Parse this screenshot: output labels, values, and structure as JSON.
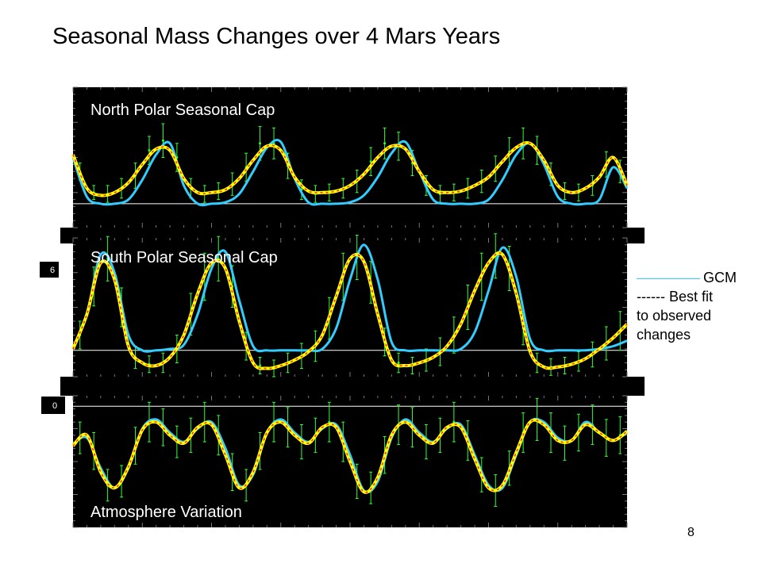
{
  "title": "Seasonal Mass Changes over 4 Mars Years",
  "slide_number": "8",
  "legend": {
    "gcm_label": "GCM",
    "fit_label_line1": "------ Best fit",
    "fit_label_line2": "to observed",
    "fit_label_line3": "changes"
  },
  "colors": {
    "panel_bg": "#000000",
    "gcm": "#33ccff",
    "best_fit": "#ffff00",
    "best_fit_dash": "#ff2200",
    "observations": "#33ff33",
    "axis_text": "#ffffff"
  },
  "chart_data": [
    {
      "type": "line",
      "title": "North Polar Seasonal Cap",
      "xlabel": "",
      "ylabel": "",
      "x_range": [
        0,
        4
      ],
      "y_range": [
        0,
        1
      ],
      "baseline": 0.17,
      "grid": false,
      "series": [
        {
          "role": "gcm",
          "x": [
            0,
            0.1,
            0.2,
            0.3,
            0.4,
            0.5,
            0.6,
            0.7,
            0.8,
            0.9,
            1.0,
            1.1,
            1.2,
            1.3,
            1.4,
            1.5,
            1.6,
            1.7,
            1.8,
            1.9,
            2.0,
            2.1,
            2.2,
            2.3,
            2.4,
            2.5,
            2.6,
            2.7,
            2.8,
            2.9,
            3.0,
            3.1,
            3.2,
            3.3,
            3.4,
            3.5,
            3.6,
            3.7,
            3.8,
            3.9,
            4.0
          ],
          "y": [
            0.5,
            0.22,
            0.17,
            0.17,
            0.2,
            0.34,
            0.52,
            0.6,
            0.3,
            0.17,
            0.17,
            0.18,
            0.24,
            0.4,
            0.57,
            0.61,
            0.35,
            0.18,
            0.17,
            0.17,
            0.18,
            0.23,
            0.36,
            0.53,
            0.61,
            0.4,
            0.2,
            0.17,
            0.17,
            0.17,
            0.2,
            0.34,
            0.52,
            0.6,
            0.45,
            0.22,
            0.17,
            0.17,
            0.2,
            0.43,
            0.28
          ]
        },
        {
          "role": "best_fit",
          "x": [
            0,
            0.1,
            0.2,
            0.3,
            0.4,
            0.5,
            0.6,
            0.7,
            0.8,
            0.9,
            1.0,
            1.1,
            1.2,
            1.3,
            1.4,
            1.5,
            1.6,
            1.7,
            1.8,
            1.9,
            2.0,
            2.1,
            2.2,
            2.3,
            2.4,
            2.5,
            2.6,
            2.7,
            2.8,
            2.9,
            3.0,
            3.1,
            3.2,
            3.3,
            3.4,
            3.5,
            3.6,
            3.7,
            3.8,
            3.9,
            4.0
          ],
          "y": [
            0.52,
            0.28,
            0.23,
            0.25,
            0.32,
            0.45,
            0.56,
            0.55,
            0.35,
            0.25,
            0.25,
            0.27,
            0.35,
            0.48,
            0.58,
            0.55,
            0.36,
            0.26,
            0.25,
            0.26,
            0.3,
            0.38,
            0.5,
            0.58,
            0.56,
            0.4,
            0.27,
            0.25,
            0.26,
            0.3,
            0.36,
            0.47,
            0.57,
            0.6,
            0.48,
            0.3,
            0.25,
            0.28,
            0.36,
            0.5,
            0.3
          ]
        },
        {
          "role": "observations",
          "x": [
            0.05,
            0.15,
            0.25,
            0.35,
            0.45,
            0.55,
            0.65,
            0.75,
            0.85,
            0.95,
            1.05,
            1.15,
            1.25,
            1.35,
            1.45,
            1.55,
            1.65,
            1.75,
            1.85,
            1.95,
            2.05,
            2.15,
            2.25,
            2.35,
            2.45,
            2.55,
            2.65,
            2.75,
            2.85,
            2.95,
            3.05,
            3.15,
            3.25,
            3.35,
            3.45,
            3.55,
            3.65,
            3.75,
            3.85,
            3.95
          ],
          "y": [
            0.4,
            0.25,
            0.24,
            0.28,
            0.37,
            0.55,
            0.62,
            0.5,
            0.28,
            0.24,
            0.26,
            0.31,
            0.43,
            0.6,
            0.6,
            0.44,
            0.27,
            0.24,
            0.25,
            0.28,
            0.33,
            0.47,
            0.6,
            0.58,
            0.46,
            0.3,
            0.24,
            0.25,
            0.28,
            0.33,
            0.42,
            0.54,
            0.6,
            0.55,
            0.38,
            0.26,
            0.25,
            0.3,
            0.45,
            0.4
          ],
          "err": [
            0.06,
            0.05,
            0.06,
            0.07,
            0.09,
            0.1,
            0.12,
            0.1,
            0.07,
            0.06,
            0.06,
            0.08,
            0.1,
            0.12,
            0.11,
            0.09,
            0.07,
            0.06,
            0.06,
            0.07,
            0.08,
            0.1,
            0.11,
            0.1,
            0.09,
            0.07,
            0.06,
            0.06,
            0.07,
            0.08,
            0.09,
            0.1,
            0.11,
            0.1,
            0.08,
            0.06,
            0.06,
            0.07,
            0.09,
            0.08
          ]
        }
      ]
    },
    {
      "type": "line",
      "title": "South Polar Seasonal Cap",
      "xlabel": "",
      "ylabel": "",
      "x_range": [
        0,
        4
      ],
      "y_range": [
        0,
        1
      ],
      "baseline": 0.19,
      "grid": false,
      "series": [
        {
          "role": "gcm",
          "x": [
            0,
            0.1,
            0.2,
            0.3,
            0.4,
            0.5,
            0.6,
            0.7,
            0.8,
            0.9,
            1.0,
            1.1,
            1.2,
            1.3,
            1.4,
            1.5,
            1.6,
            1.7,
            1.8,
            1.9,
            2.0,
            2.1,
            2.2,
            2.3,
            2.4,
            2.5,
            2.6,
            2.7,
            2.8,
            2.9,
            3.0,
            3.1,
            3.2,
            3.3,
            3.4,
            3.5,
            3.6,
            3.7,
            3.8,
            3.9,
            4.0
          ],
          "y": [
            0.2,
            0.45,
            0.88,
            0.75,
            0.3,
            0.19,
            0.19,
            0.2,
            0.23,
            0.45,
            0.78,
            0.9,
            0.55,
            0.22,
            0.19,
            0.19,
            0.19,
            0.19,
            0.2,
            0.35,
            0.7,
            0.95,
            0.7,
            0.25,
            0.19,
            0.19,
            0.19,
            0.19,
            0.2,
            0.32,
            0.62,
            0.93,
            0.72,
            0.27,
            0.19,
            0.19,
            0.19,
            0.19,
            0.2,
            0.22,
            0.26
          ]
        },
        {
          "role": "best_fit",
          "x": [
            0,
            0.1,
            0.2,
            0.3,
            0.4,
            0.5,
            0.6,
            0.7,
            0.8,
            0.9,
            1.0,
            1.1,
            1.2,
            1.3,
            1.4,
            1.5,
            1.6,
            1.7,
            1.8,
            1.9,
            2.0,
            2.1,
            2.2,
            2.3,
            2.4,
            2.5,
            2.6,
            2.7,
            2.8,
            2.9,
            3.0,
            3.1,
            3.2,
            3.3,
            3.4,
            3.5,
            3.6,
            3.7,
            3.8,
            3.9,
            4.0
          ],
          "y": [
            0.2,
            0.45,
            0.82,
            0.7,
            0.22,
            0.1,
            0.08,
            0.14,
            0.3,
            0.6,
            0.82,
            0.78,
            0.4,
            0.1,
            0.06,
            0.08,
            0.12,
            0.18,
            0.3,
            0.58,
            0.85,
            0.83,
            0.45,
            0.12,
            0.08,
            0.1,
            0.14,
            0.22,
            0.38,
            0.62,
            0.82,
            0.88,
            0.6,
            0.18,
            0.07,
            0.07,
            0.09,
            0.13,
            0.2,
            0.28,
            0.38
          ]
        },
        {
          "role": "observations",
          "x": [
            0.05,
            0.15,
            0.25,
            0.35,
            0.45,
            0.55,
            0.65,
            0.75,
            0.85,
            0.95,
            1.05,
            1.15,
            1.25,
            1.35,
            1.45,
            1.55,
            1.65,
            1.75,
            1.85,
            1.95,
            2.05,
            2.15,
            2.25,
            2.35,
            2.45,
            2.55,
            2.65,
            2.75,
            2.85,
            2.95,
            3.05,
            3.15,
            3.25,
            3.35,
            3.45,
            3.55,
            3.65,
            3.75,
            3.85,
            3.95
          ],
          "y": [
            0.3,
            0.65,
            0.85,
            0.5,
            0.14,
            0.09,
            0.1,
            0.2,
            0.45,
            0.72,
            0.85,
            0.65,
            0.22,
            0.08,
            0.06,
            0.1,
            0.15,
            0.22,
            0.42,
            0.72,
            0.86,
            0.68,
            0.25,
            0.1,
            0.08,
            0.12,
            0.18,
            0.3,
            0.5,
            0.72,
            0.87,
            0.78,
            0.35,
            0.1,
            0.07,
            0.08,
            0.11,
            0.16,
            0.24,
            0.33
          ],
          "err": [
            0.1,
            0.14,
            0.16,
            0.14,
            0.08,
            0.06,
            0.07,
            0.1,
            0.15,
            0.17,
            0.16,
            0.15,
            0.1,
            0.06,
            0.06,
            0.07,
            0.09,
            0.11,
            0.15,
            0.17,
            0.16,
            0.15,
            0.1,
            0.07,
            0.06,
            0.08,
            0.1,
            0.13,
            0.16,
            0.17,
            0.16,
            0.16,
            0.12,
            0.07,
            0.06,
            0.06,
            0.07,
            0.09,
            0.12,
            0.14
          ]
        }
      ]
    },
    {
      "type": "line",
      "title": "Atmosphere Variation",
      "xlabel": "",
      "ylabel": "",
      "x_range": [
        0,
        4
      ],
      "y_range": [
        0,
        1
      ],
      "baseline": 0.92,
      "grid": false,
      "series": [
        {
          "role": "gcm",
          "x": [
            0,
            0.1,
            0.2,
            0.3,
            0.4,
            0.5,
            0.6,
            0.7,
            0.8,
            0.9,
            1.0,
            1.1,
            1.2,
            1.3,
            1.4,
            1.5,
            1.6,
            1.7,
            1.8,
            1.9,
            2.0,
            2.1,
            2.2,
            2.3,
            2.4,
            2.5,
            2.6,
            2.7,
            2.8,
            2.9,
            3.0,
            3.1,
            3.2,
            3.3,
            3.4,
            3.5,
            3.6,
            3.7,
            3.8,
            3.9,
            4.0
          ],
          "y": [
            0.63,
            0.68,
            0.45,
            0.3,
            0.45,
            0.75,
            0.82,
            0.72,
            0.65,
            0.75,
            0.8,
            0.6,
            0.32,
            0.4,
            0.72,
            0.82,
            0.72,
            0.65,
            0.75,
            0.78,
            0.55,
            0.28,
            0.35,
            0.68,
            0.82,
            0.72,
            0.65,
            0.75,
            0.78,
            0.55,
            0.32,
            0.3,
            0.55,
            0.8,
            0.8,
            0.68,
            0.66,
            0.8,
            0.72,
            0.66,
            0.72
          ]
        },
        {
          "role": "best_fit",
          "x": [
            0,
            0.1,
            0.2,
            0.3,
            0.4,
            0.5,
            0.6,
            0.7,
            0.8,
            0.9,
            1.0,
            1.1,
            1.2,
            1.3,
            1.4,
            1.5,
            1.6,
            1.7,
            1.8,
            1.9,
            2.0,
            2.1,
            2.2,
            2.3,
            2.4,
            2.5,
            2.6,
            2.7,
            2.8,
            2.9,
            3.0,
            3.1,
            3.2,
            3.3,
            3.4,
            3.5,
            3.6,
            3.7,
            3.8,
            3.9,
            4.0
          ],
          "y": [
            0.62,
            0.7,
            0.42,
            0.3,
            0.46,
            0.74,
            0.8,
            0.7,
            0.64,
            0.76,
            0.78,
            0.55,
            0.3,
            0.42,
            0.72,
            0.8,
            0.7,
            0.64,
            0.76,
            0.76,
            0.5,
            0.27,
            0.38,
            0.7,
            0.8,
            0.7,
            0.64,
            0.76,
            0.76,
            0.52,
            0.3,
            0.32,
            0.57,
            0.8,
            0.78,
            0.66,
            0.66,
            0.78,
            0.72,
            0.66,
            0.73
          ]
        },
        {
          "role": "observations",
          "x": [
            0.05,
            0.15,
            0.25,
            0.35,
            0.45,
            0.55,
            0.65,
            0.75,
            0.85,
            0.95,
            1.05,
            1.15,
            1.25,
            1.35,
            1.45,
            1.55,
            1.65,
            1.75,
            1.85,
            1.95,
            2.05,
            2.15,
            2.25,
            2.35,
            2.45,
            2.55,
            2.65,
            2.75,
            2.85,
            2.95,
            3.05,
            3.15,
            3.25,
            3.35,
            3.45,
            3.55,
            3.65,
            3.75,
            3.85,
            3.95
          ],
          "y": [
            0.68,
            0.58,
            0.32,
            0.35,
            0.62,
            0.8,
            0.76,
            0.65,
            0.7,
            0.8,
            0.7,
            0.42,
            0.32,
            0.58,
            0.8,
            0.76,
            0.65,
            0.7,
            0.8,
            0.65,
            0.35,
            0.3,
            0.55,
            0.78,
            0.76,
            0.65,
            0.7,
            0.8,
            0.66,
            0.4,
            0.28,
            0.45,
            0.72,
            0.82,
            0.72,
            0.64,
            0.72,
            0.78,
            0.68,
            0.7
          ],
          "err": [
            0.12,
            0.14,
            0.12,
            0.12,
            0.14,
            0.15,
            0.14,
            0.12,
            0.13,
            0.15,
            0.15,
            0.14,
            0.12,
            0.14,
            0.15,
            0.15,
            0.13,
            0.13,
            0.15,
            0.15,
            0.13,
            0.12,
            0.14,
            0.15,
            0.15,
            0.13,
            0.13,
            0.15,
            0.15,
            0.13,
            0.12,
            0.13,
            0.15,
            0.16,
            0.15,
            0.13,
            0.14,
            0.15,
            0.14,
            0.14
          ]
        }
      ]
    }
  ],
  "tick_labels": {
    "south_panel": "6",
    "atmosphere_panel": "0"
  }
}
